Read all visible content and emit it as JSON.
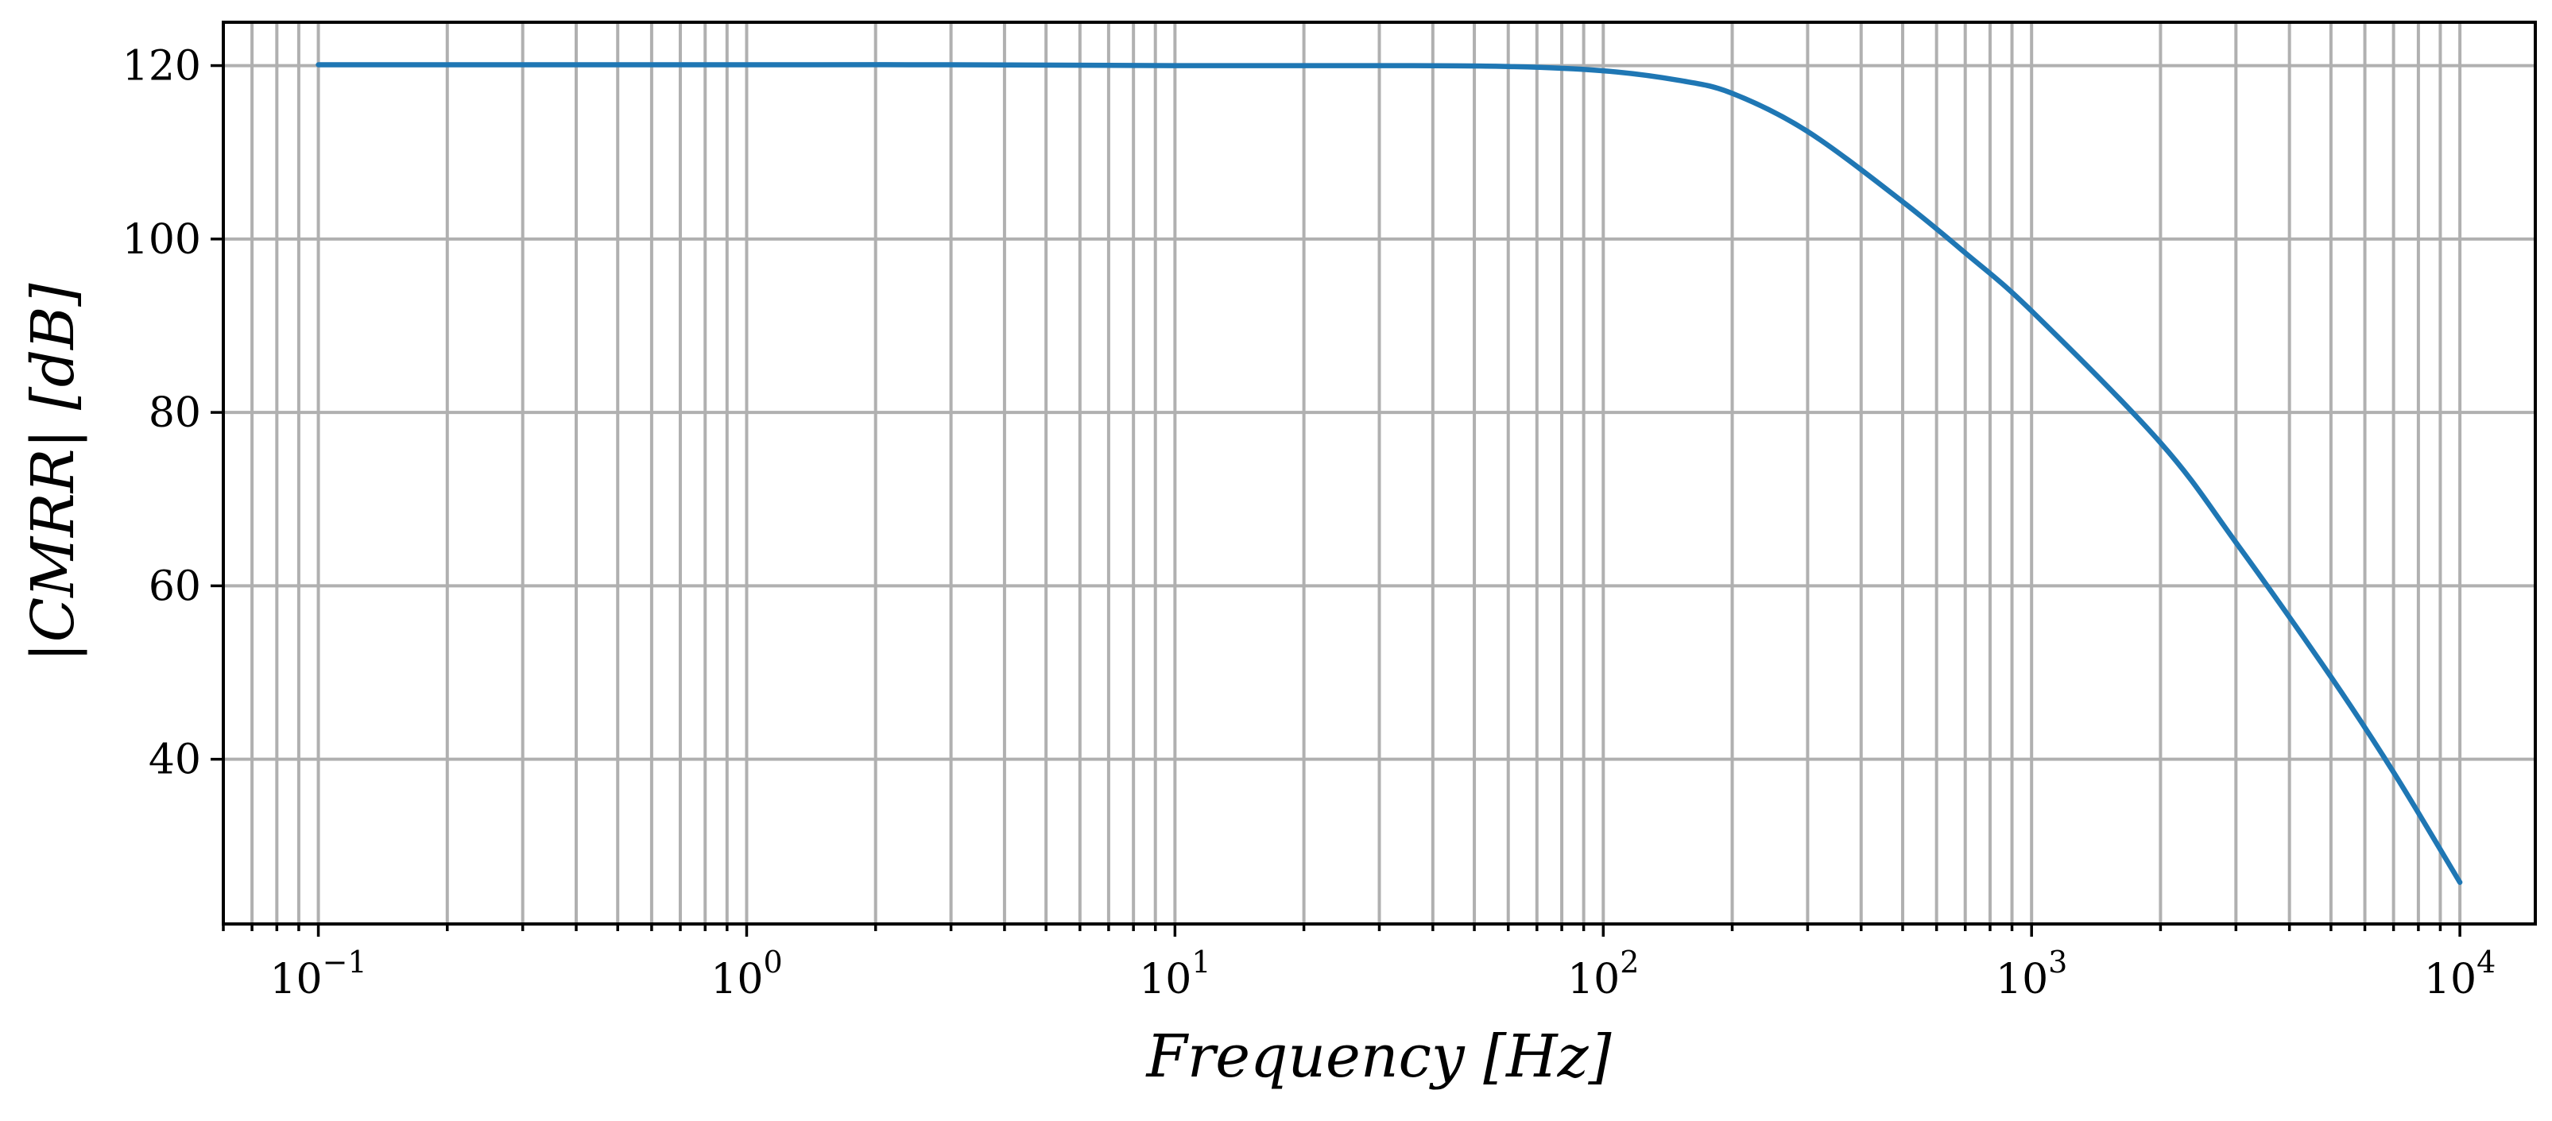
{
  "chart_data": {
    "type": "line",
    "title": "",
    "xlabel": "Frequency [Hz]",
    "ylabel": "|CMRR| [dB]",
    "xscale": "log",
    "xlim": [
      0.06,
      15000
    ],
    "ylim": [
      21,
      125
    ],
    "grid": true,
    "x_ticks": [
      {
        "value": 0.1,
        "base": "10",
        "exp": "−1"
      },
      {
        "value": 1,
        "base": "10",
        "exp": "0"
      },
      {
        "value": 10,
        "base": "10",
        "exp": "1"
      },
      {
        "value": 100,
        "base": "10",
        "exp": "2"
      },
      {
        "value": 1000,
        "base": "10",
        "exp": "3"
      },
      {
        "value": 10000,
        "base": "10",
        "exp": "4"
      }
    ],
    "y_ticks": [
      40,
      60,
      80,
      100,
      120
    ],
    "y_tick_labels": [
      "40",
      "60",
      "80",
      "100",
      "120"
    ],
    "series": [
      {
        "name": "|CMRR|",
        "color": "#1f77b4",
        "x": [
          0.1,
          1,
          3,
          10,
          30,
          60,
          100,
          150,
          200,
          300,
          500,
          700,
          1000,
          2000,
          3000,
          5000,
          7000,
          10000
        ],
        "y": [
          120.1,
          120.1,
          120.1,
          120.0,
          120.0,
          119.9,
          119.4,
          118.3,
          116.8,
          112.4,
          104.3,
          98.4,
          91.7,
          76.5,
          65.0,
          49.5,
          38.5,
          25.8
        ]
      }
    ]
  }
}
